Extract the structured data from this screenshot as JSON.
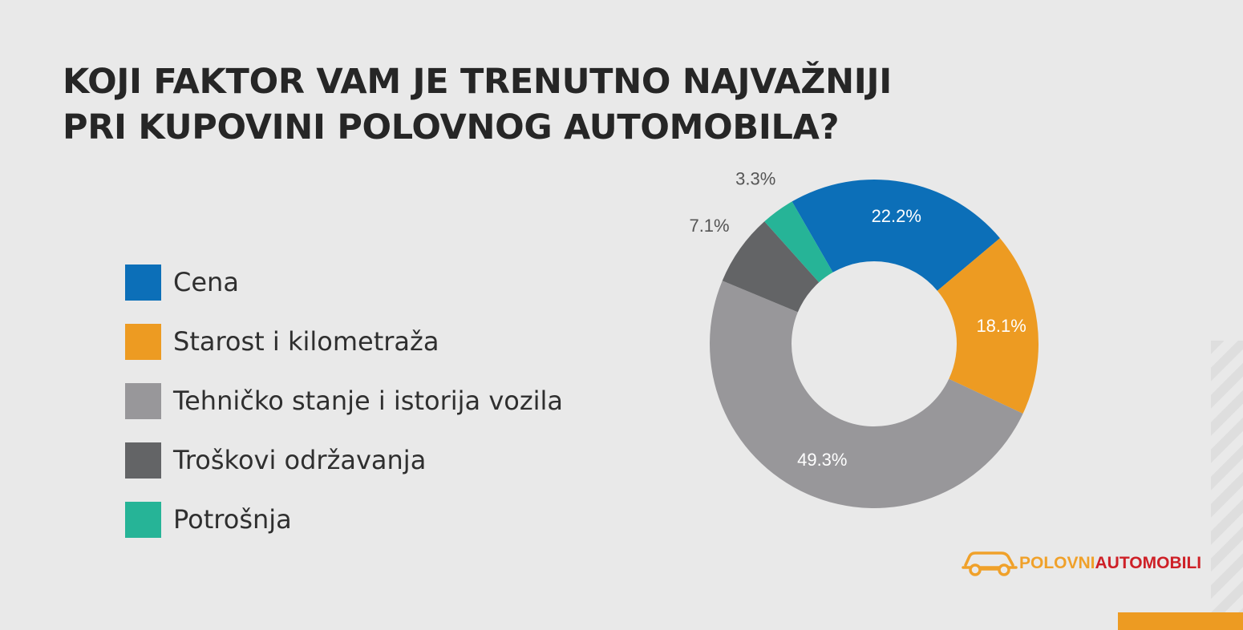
{
  "page": {
    "title_lines": [
      "KOJI FAKTOR VAM JE TRENUTNO NAJVAŽNIJI",
      "PRI KUPOVINI POLOVNOG AUTOMOBILA?"
    ]
  },
  "chart_data": {
    "type": "pie",
    "donut": true,
    "title": "KOJI FAKTOR VAM JE TRENUTNO NAJVAŽNIJI PRI KUPOVINI POLOVNOG AUTOMOBILA?",
    "legend_position": "left",
    "categories": [
      "Cena",
      "Starost i kilometraža",
      "Tehničko stanje i istorija vozila",
      "Troškovi održavanja",
      "Potrošnja"
    ],
    "values": [
      22.2,
      18.1,
      49.3,
      7.1,
      3.3
    ],
    "value_labels": [
      "22.2%",
      "18.1%",
      "49.3%",
      "7.1%",
      "3.3%"
    ],
    "colors": [
      "#0c6fb8",
      "#ed9b22",
      "#98979a",
      "#636466",
      "#26b497"
    ],
    "label_colors": [
      "#ffffff",
      "#ffffff",
      "#ffffff",
      "#555555",
      "#555555"
    ],
    "label_positions": [
      "inside",
      "inside",
      "inside",
      "outside",
      "outside"
    ]
  },
  "brand": {
    "name_part_1": "POLOVNI",
    "name_part_2": "AUTOMOBILI",
    "icon": "car-outline-icon",
    "color_part_1": "#f0a12a",
    "color_part_2": "#ce2027"
  }
}
